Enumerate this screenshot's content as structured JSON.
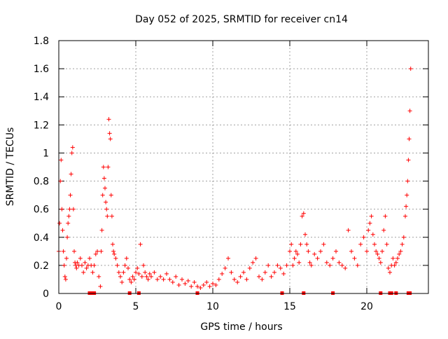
{
  "chart_data": {
    "type": "scatter",
    "title": "Day 052 of 2025, SRMTID for receiver cn14",
    "xlabel": "GPS time / hours",
    "ylabel": "SRMTID / TECUs",
    "xlim": [
      0,
      24
    ],
    "ylim": [
      0,
      1.8
    ],
    "x_ticks": [
      0,
      5,
      10,
      15,
      20
    ],
    "x_tick_labels": [
      "0",
      "5",
      "10",
      "15",
      "20"
    ],
    "y_ticks": [
      0,
      0.2,
      0.4,
      0.6,
      0.8,
      1.0,
      1.2,
      1.4,
      1.6,
      1.8
    ],
    "y_tick_labels": [
      "0",
      "0.2",
      "0.4",
      "0.6",
      "0.8",
      "1",
      "1.2",
      "1.4",
      "1.6",
      "1.8"
    ],
    "grid": true,
    "marker": "+",
    "color": "#ff0000",
    "zero_markers_x": [
      2.0,
      2.1,
      2.3,
      4.6,
      5.2,
      9.0,
      14.5,
      15.9,
      17.8,
      20.9,
      21.5,
      21.6,
      21.9,
      22.7,
      22.8
    ],
    "series": [
      {
        "name": "SRMTID",
        "x": [
          0.0,
          0.05,
          0.1,
          0.15,
          0.2,
          0.25,
          0.3,
          0.35,
          0.4,
          0.45,
          0.5,
          0.55,
          0.6,
          0.65,
          0.7,
          0.75,
          0.8,
          0.85,
          0.9,
          0.95,
          1.0,
          1.05,
          1.1,
          1.15,
          1.2,
          1.3,
          1.4,
          1.5,
          1.6,
          1.7,
          1.8,
          1.9,
          2.0,
          2.1,
          2.2,
          2.3,
          2.4,
          2.5,
          2.6,
          2.7,
          2.75,
          2.8,
          2.85,
          2.9,
          2.95,
          3.0,
          3.05,
          3.1,
          3.15,
          3.2,
          3.25,
          3.3,
          3.35,
          3.4,
          3.45,
          3.5,
          3.55,
          3.6,
          3.7,
          3.8,
          3.9,
          4.0,
          4.1,
          4.2,
          4.3,
          4.4,
          4.5,
          4.6,
          4.7,
          4.8,
          4.9,
          5.0,
          5.1,
          5.2,
          5.3,
          5.4,
          5.5,
          5.6,
          5.7,
          5.8,
          5.9,
          6.0,
          6.2,
          6.4,
          6.6,
          6.8,
          7.0,
          7.2,
          7.4,
          7.6,
          7.8,
          8.0,
          8.2,
          8.4,
          8.6,
          8.8,
          9.0,
          9.2,
          9.4,
          9.6,
          9.8,
          10.0,
          10.2,
          10.4,
          10.6,
          10.8,
          11.0,
          11.2,
          11.4,
          11.6,
          11.8,
          12.0,
          12.2,
          12.4,
          12.6,
          12.8,
          13.0,
          13.2,
          13.4,
          13.6,
          13.8,
          14.0,
          14.2,
          14.4,
          14.6,
          14.8,
          15.0,
          15.1,
          15.2,
          15.3,
          15.4,
          15.5,
          15.6,
          15.7,
          15.8,
          15.9,
          16.0,
          16.1,
          16.2,
          16.3,
          16.4,
          16.6,
          16.8,
          17.0,
          17.2,
          17.4,
          17.6,
          17.8,
          18.0,
          18.2,
          18.4,
          18.6,
          18.8,
          19.0,
          19.2,
          19.4,
          19.6,
          19.8,
          20.0,
          20.1,
          20.2,
          20.3,
          20.4,
          20.5,
          20.6,
          20.7,
          20.8,
          20.9,
          21.0,
          21.1,
          21.2,
          21.3,
          21.4,
          21.5,
          21.6,
          21.7,
          21.8,
          21.9,
          22.0,
          22.1,
          22.2,
          22.3,
          22.4,
          22.5,
          22.55,
          22.6,
          22.65,
          22.7,
          22.75,
          22.8,
          22.85
        ],
        "y": [
          0.3,
          0.5,
          0.8,
          0.95,
          0.6,
          0.45,
          0.3,
          0.2,
          0.12,
          0.1,
          0.25,
          0.4,
          0.5,
          0.55,
          0.6,
          0.7,
          0.85,
          1.0,
          1.04,
          0.6,
          0.3,
          0.22,
          0.2,
          0.18,
          0.22,
          0.2,
          0.25,
          0.2,
          0.15,
          0.22,
          0.18,
          0.2,
          0.25,
          0.2,
          0.15,
          0.2,
          0.28,
          0.3,
          0.12,
          0.05,
          0.3,
          0.45,
          0.7,
          0.9,
          0.82,
          0.75,
          0.65,
          0.6,
          0.55,
          0.9,
          1.24,
          1.14,
          1.1,
          0.7,
          0.55,
          0.35,
          0.3,
          0.28,
          0.25,
          0.2,
          0.15,
          0.12,
          0.08,
          0.15,
          0.2,
          0.25,
          0.18,
          0.1,
          0.08,
          0.12,
          0.1,
          0.15,
          0.18,
          0.14,
          0.35,
          0.12,
          0.2,
          0.15,
          0.12,
          0.1,
          0.14,
          0.12,
          0.15,
          0.1,
          0.12,
          0.1,
          0.14,
          0.1,
          0.08,
          0.12,
          0.06,
          0.1,
          0.07,
          0.09,
          0.05,
          0.08,
          0.05,
          0.04,
          0.06,
          0.08,
          0.05,
          0.07,
          0.06,
          0.1,
          0.14,
          0.18,
          0.25,
          0.15,
          0.1,
          0.08,
          0.12,
          0.15,
          0.1,
          0.18,
          0.22,
          0.25,
          0.12,
          0.1,
          0.15,
          0.2,
          0.12,
          0.15,
          0.2,
          0.18,
          0.14,
          0.2,
          0.3,
          0.35,
          0.2,
          0.25,
          0.3,
          0.28,
          0.22,
          0.35,
          0.55,
          0.57,
          0.42,
          0.35,
          0.3,
          0.22,
          0.2,
          0.28,
          0.25,
          0.3,
          0.35,
          0.22,
          0.2,
          0.25,
          0.3,
          0.22,
          0.2,
          0.18,
          0.45,
          0.3,
          0.25,
          0.2,
          0.35,
          0.4,
          0.3,
          0.45,
          0.5,
          0.55,
          0.42,
          0.35,
          0.3,
          0.28,
          0.25,
          0.22,
          0.3,
          0.45,
          0.55,
          0.35,
          0.18,
          0.15,
          0.2,
          0.25,
          0.2,
          0.22,
          0.25,
          0.28,
          0.3,
          0.35,
          0.4,
          0.55,
          0.62,
          0.7,
          0.8,
          0.95,
          1.1,
          1.3,
          1.6
        ]
      }
    ]
  }
}
